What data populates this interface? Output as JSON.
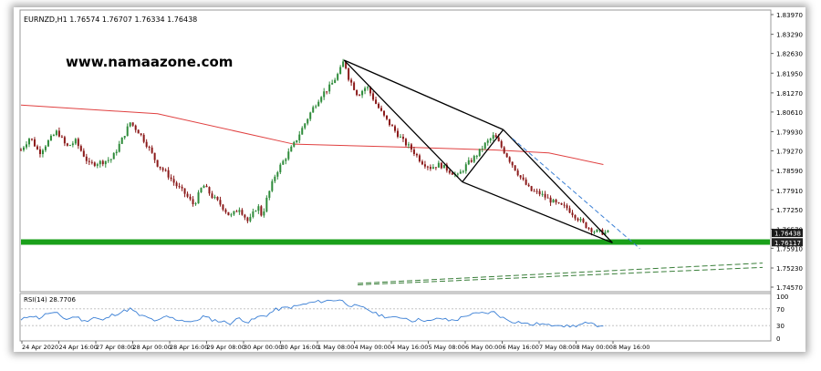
{
  "symbol_header": "EURNZD,H1  1.76574 1.76707 1.76334 1.76438",
  "watermark": "www.namaazone.com",
  "price_axis": [
    "1.83970",
    "1.83290",
    "1.82630",
    "1.81950",
    "1.81270",
    "1.80610",
    "1.79930",
    "1.79270",
    "1.78590",
    "1.77910",
    "1.77250",
    "1.76570",
    "1.76438",
    "1.76117",
    "1.75910",
    "1.75230",
    "1.74570"
  ],
  "rsi_label": "RSI(14) 28.7706",
  "rsi_axis": [
    "100",
    "70",
    "30",
    "0"
  ],
  "time_axis": [
    "24 Apr 2020",
    "24 Apr 16:00",
    "27 Apr 08:00",
    "28 Apr 00:00",
    "28 Apr 16:00",
    "29 Apr 08:00",
    "30 Apr 00:00",
    "30 Apr 16:00",
    "1 May 08:00",
    "4 May 00:00",
    "4 May 16:00",
    "5 May 08:00",
    "6 May 00:00",
    "6 May 16:00",
    "7 May 08:00",
    "8 May 00:00",
    "8 May 16:00"
  ],
  "colors": {
    "bull_candle": "#2e8b3a",
    "bear_candle": "#8b1a1a",
    "moving_average": "#e04040",
    "support_band": "#1aa01a",
    "rsi_line": "#3a7fd5",
    "trendline": "#000000",
    "dashed_channel": "#3a7f3a"
  },
  "chart_data": {
    "type": "candlestick",
    "symbol": "EURNZD",
    "timeframe": "H1",
    "last_ohlc": {
      "open": 1.76574,
      "high": 1.76707,
      "low": 1.76334,
      "close": 1.76438
    },
    "ylim": [
      1.7457,
      1.8397
    ],
    "x_range": [
      "24 Apr 2020",
      "8 May 16:00"
    ],
    "close_path": [
      [
        0,
        1.793
      ],
      [
        10,
        1.7975
      ],
      [
        20,
        1.792
      ],
      [
        30,
        1.796
      ],
      [
        40,
        1.7995
      ],
      [
        50,
        1.794
      ],
      [
        60,
        1.796
      ],
      [
        75,
        1.788
      ],
      [
        90,
        1.789
      ],
      [
        100,
        1.79
      ],
      [
        110,
        1.796
      ],
      [
        120,
        1.8025
      ],
      [
        130,
        1.799
      ],
      [
        140,
        1.794
      ],
      [
        150,
        1.788
      ],
      [
        160,
        1.785
      ],
      [
        170,
        1.781
      ],
      [
        180,
        1.778
      ],
      [
        190,
        1.774
      ],
      [
        200,
        1.781
      ],
      [
        210,
        1.777
      ],
      [
        220,
        1.774
      ],
      [
        230,
        1.77
      ],
      [
        240,
        1.773
      ],
      [
        250,
        1.768
      ],
      [
        260,
        1.774
      ],
      [
        265,
        1.77
      ],
      [
        270,
        1.776
      ],
      [
        280,
        1.785
      ],
      [
        290,
        1.79
      ],
      [
        300,
        1.795
      ],
      [
        310,
        1.801
      ],
      [
        320,
        1.807
      ],
      [
        330,
        1.812
      ],
      [
        340,
        1.815
      ],
      [
        350,
        1.82
      ],
      [
        355,
        1.824
      ],
      [
        360,
        1.818
      ],
      [
        370,
        1.812
      ],
      [
        380,
        1.815
      ],
      [
        390,
        1.809
      ],
      [
        400,
        1.804
      ],
      [
        410,
        1.8
      ],
      [
        420,
        1.796
      ],
      [
        430,
        1.793
      ],
      [
        440,
        1.789
      ],
      [
        450,
        1.787
      ],
      [
        460,
        1.788
      ],
      [
        470,
        1.786
      ],
      [
        480,
        1.784
      ],
      [
        490,
        1.788
      ],
      [
        500,
        1.791
      ],
      [
        510,
        1.795
      ],
      [
        520,
        1.798
      ],
      [
        530,
        1.793
      ],
      [
        540,
        1.788
      ],
      [
        550,
        1.783
      ],
      [
        560,
        1.779
      ],
      [
        570,
        1.778
      ],
      [
        580,
        1.776
      ],
      [
        590,
        1.774
      ],
      [
        600,
        1.773
      ],
      [
        610,
        1.77
      ],
      [
        620,
        1.767
      ],
      [
        630,
        1.765
      ],
      [
        640,
        1.7645
      ]
    ],
    "moving_average": [
      [
        0,
        1.8085
      ],
      [
        150,
        1.8055
      ],
      [
        300,
        1.795
      ],
      [
        420,
        1.794
      ],
      [
        520,
        1.793
      ],
      [
        580,
        1.792
      ],
      [
        640,
        1.788
      ]
    ],
    "support_zone": [
      1.7605,
      1.7622
    ],
    "trendlines": {
      "upper_channel": [
        [
          355,
          1.824
        ],
        [
          530,
          1.8
        ]
      ],
      "lower_channel": [
        [
          485,
          1.782
        ],
        [
          650,
          1.761
        ]
      ],
      "wedge_left": [
        [
          355,
          1.824
        ],
        [
          485,
          1.782
        ]
      ],
      "wedge_mid": [
        [
          485,
          1.782
        ],
        [
          530,
          1.8
        ]
      ],
      "upper_to_apex": [
        [
          530,
          1.8
        ],
        [
          650,
          1.761
        ]
      ],
      "dashed_channel_1": [
        [
          370,
          1.747
        ],
        [
          815,
          1.754
        ]
      ],
      "dashed_channel_2": [
        [
          370,
          1.7465
        ],
        [
          815,
          1.7525
        ]
      ],
      "blue_dashed": [
        [
          540,
          1.797
        ],
        [
          680,
          1.759
        ]
      ]
    },
    "rsi": {
      "name": "RSI(14)",
      "last": 28.7706,
      "ylim": [
        0,
        100
      ],
      "levels": [
        30,
        70
      ],
      "values": [
        [
          0,
          42
        ],
        [
          10,
          55
        ],
        [
          20,
          48
        ],
        [
          30,
          60
        ],
        [
          40,
          58
        ],
        [
          50,
          45
        ],
        [
          60,
          52
        ],
        [
          70,
          40
        ],
        [
          80,
          50
        ],
        [
          90,
          42
        ],
        [
          100,
          55
        ],
        [
          110,
          62
        ],
        [
          120,
          70
        ],
        [
          130,
          55
        ],
        [
          140,
          48
        ],
        [
          150,
          40
        ],
        [
          160,
          52
        ],
        [
          170,
          45
        ],
        [
          180,
          42
        ],
        [
          190,
          38
        ],
        [
          200,
          52
        ],
        [
          210,
          44
        ],
        [
          220,
          40
        ],
        [
          230,
          36
        ],
        [
          240,
          48
        ],
        [
          250,
          38
        ],
        [
          260,
          50
        ],
        [
          270,
          55
        ],
        [
          280,
          68
        ],
        [
          290,
          72
        ],
        [
          300,
          75
        ],
        [
          310,
          80
        ],
        [
          320,
          85
        ],
        [
          330,
          88
        ],
        [
          340,
          90
        ],
        [
          350,
          92
        ],
        [
          360,
          80
        ],
        [
          370,
          75
        ],
        [
          380,
          70
        ],
        [
          390,
          58
        ],
        [
          400,
          52
        ],
        [
          410,
          48
        ],
        [
          420,
          50
        ],
        [
          430,
          42
        ],
        [
          440,
          45
        ],
        [
          450,
          40
        ],
        [
          460,
          48
        ],
        [
          470,
          42
        ],
        [
          480,
          45
        ],
        [
          490,
          55
        ],
        [
          500,
          58
        ],
        [
          510,
          60
        ],
        [
          520,
          62
        ],
        [
          530,
          48
        ],
        [
          540,
          40
        ],
        [
          550,
          38
        ],
        [
          560,
          32
        ],
        [
          570,
          35
        ],
        [
          580,
          30
        ],
        [
          590,
          34
        ],
        [
          600,
          28
        ],
        [
          610,
          30
        ],
        [
          620,
          35
        ],
        [
          630,
          32
        ],
        [
          640,
          29
        ]
      ]
    }
  }
}
